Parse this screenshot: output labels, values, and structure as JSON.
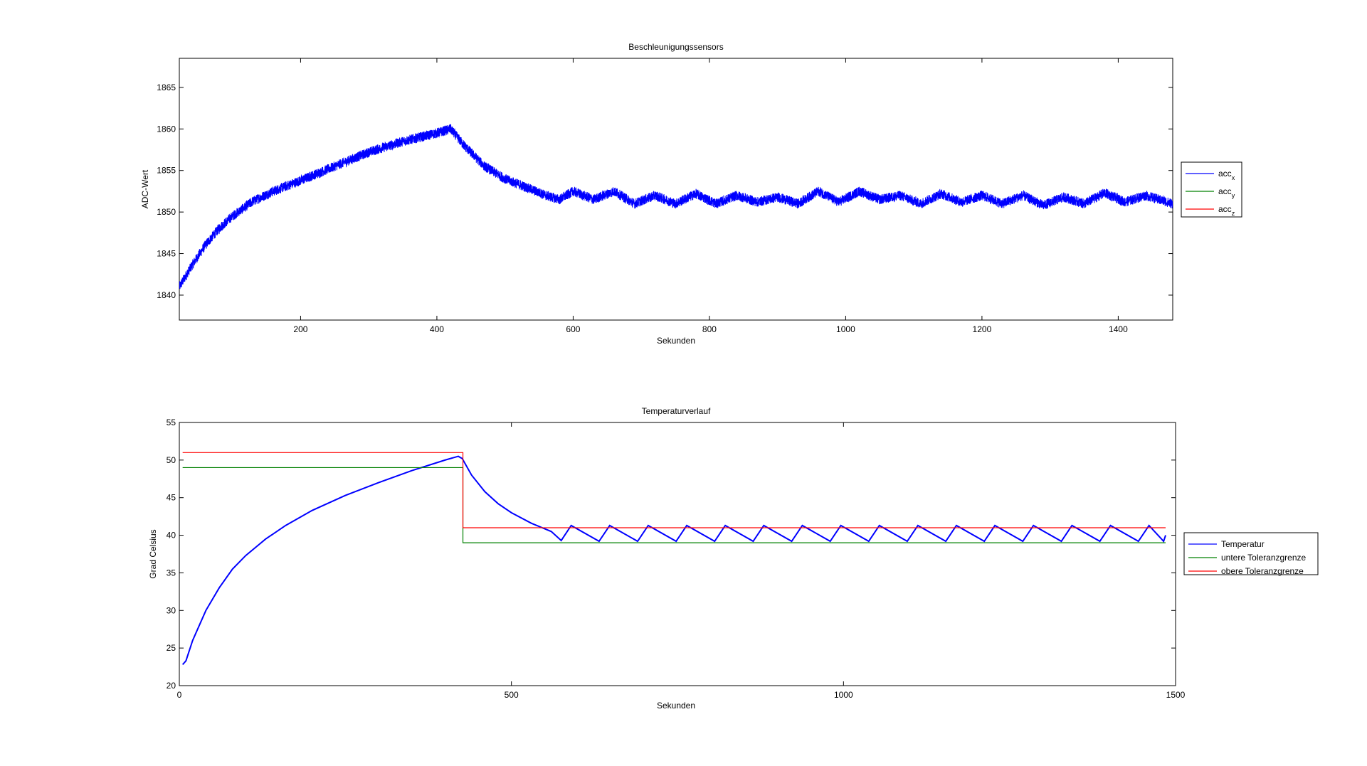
{
  "chart_data": [
    {
      "type": "line",
      "title": "Beschleunigungssensors",
      "xlabel": "Sekunden",
      "ylabel": "ADC-Wert",
      "xlim": [
        22,
        1480
      ],
      "ylim": [
        1837,
        1868.5
      ],
      "xticks": [
        200,
        400,
        600,
        800,
        1000,
        1200,
        1400
      ],
      "yticks": [
        1840,
        1845,
        1850,
        1855,
        1860,
        1865
      ],
      "grid": false,
      "legend_position": "outside-right",
      "legend": [
        {
          "base": "acc",
          "sub": "x",
          "color": "#0000ff"
        },
        {
          "base": "acc",
          "sub": "y",
          "color": "#008000"
        },
        {
          "base": "acc",
          "sub": "z",
          "color": "#ff0000"
        }
      ],
      "series": [
        {
          "name": "acc_x",
          "color": "#0000ff",
          "noise_amplitude": 0.6,
          "x": [
            22,
            40,
            60,
            80,
            100,
            130,
            160,
            200,
            250,
            300,
            350,
            400,
            420,
            440,
            470,
            500,
            530,
            560,
            580,
            600,
            630,
            660,
            690,
            720,
            750,
            780,
            810,
            840,
            870,
            900,
            930,
            960,
            990,
            1020,
            1050,
            1080,
            1110,
            1140,
            1170,
            1200,
            1230,
            1260,
            1290,
            1320,
            1350,
            1380,
            1410,
            1440,
            1480
          ],
          "y": [
            1841,
            1843.5,
            1846,
            1848,
            1849.5,
            1851.3,
            1852.5,
            1853.8,
            1855.5,
            1857.2,
            1858.5,
            1859.5,
            1860,
            1858,
            1855.5,
            1854,
            1853,
            1852,
            1851.5,
            1852.5,
            1851.5,
            1852.5,
            1851,
            1852,
            1851,
            1852.2,
            1851,
            1852,
            1851.2,
            1851.8,
            1851,
            1852.5,
            1851.2,
            1852.5,
            1851.5,
            1852,
            1851,
            1852.2,
            1851.2,
            1852,
            1851,
            1852,
            1850.8,
            1851.8,
            1851,
            1852.3,
            1851.2,
            1852,
            1851
          ]
        }
      ]
    },
    {
      "type": "line",
      "title": "Temperaturverlauf",
      "xlabel": "Sekunden",
      "ylabel": "Grad Celsius",
      "xlim": [
        0,
        1500
      ],
      "ylim": [
        20,
        55
      ],
      "xticks": [
        0,
        500,
        1000,
        1500
      ],
      "yticks": [
        20,
        25,
        30,
        35,
        40,
        45,
        50,
        55
      ],
      "grid": false,
      "legend_position": "outside-right",
      "legend": [
        {
          "label": "Temperatur",
          "color": "#0000ff"
        },
        {
          "label": "untere Toleranzgrenze",
          "color": "#008000"
        },
        {
          "label": "obere Toleranzgrenze",
          "color": "#ff0000"
        }
      ],
      "series": [
        {
          "name": "Temperatur",
          "color": "#0000ff",
          "x": [
            5,
            10,
            20,
            40,
            60,
            80,
            100,
            130,
            160,
            200,
            250,
            300,
            350,
            400,
            420,
            426,
            440,
            460,
            480,
            500,
            530,
            560,
            575,
            590,
            632,
            648,
            690,
            706,
            748,
            764,
            806,
            822,
            864,
            880,
            922,
            938,
            980,
            996,
            1038,
            1054,
            1096,
            1112,
            1154,
            1170,
            1212,
            1228,
            1270,
            1286,
            1328,
            1344,
            1386,
            1402,
            1444,
            1460,
            1482,
            1485
          ],
          "y": [
            22.8,
            23.3,
            26,
            30,
            33,
            35.5,
            37.3,
            39.5,
            41.3,
            43.3,
            45.3,
            47,
            48.6,
            50,
            50.5,
            50.2,
            48,
            45.8,
            44.2,
            43,
            41.6,
            40.5,
            39.3,
            41.3,
            39.2,
            41.3,
            39.2,
            41.3,
            39.2,
            41.3,
            39.2,
            41.3,
            39.2,
            41.3,
            39.2,
            41.3,
            39.2,
            41.3,
            39.2,
            41.3,
            39.2,
            41.3,
            39.2,
            41.3,
            39.2,
            41.3,
            39.2,
            41.3,
            39.2,
            41.3,
            39.2,
            41.3,
            39.2,
            41.3,
            39.2,
            40
          ]
        },
        {
          "name": "untere Toleranzgrenze",
          "color": "#008000",
          "x": [
            5,
            427,
            427,
            1485
          ],
          "y": [
            49,
            49,
            39,
            39
          ]
        },
        {
          "name": "obere Toleranzgrenze",
          "color": "#ff0000",
          "x": [
            5,
            427,
            427,
            1485
          ],
          "y": [
            51,
            51,
            41,
            41
          ]
        }
      ]
    }
  ]
}
